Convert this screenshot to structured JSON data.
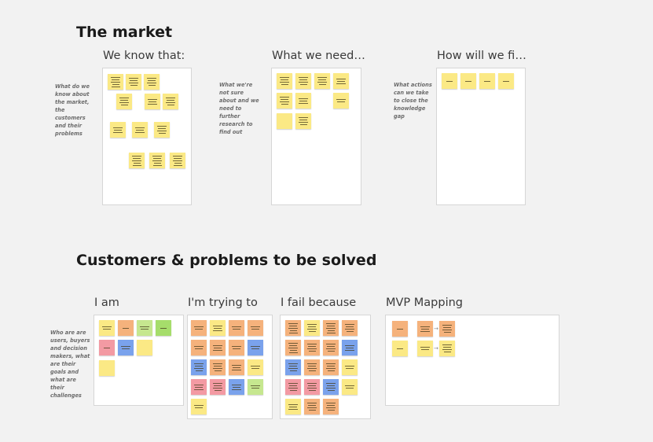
{
  "sections": {
    "market": {
      "title": "The market"
    },
    "customers": {
      "title": "Customers & problems to be solved"
    }
  },
  "frames": {
    "know": {
      "title": "We know that:",
      "note": "What do we know about the market, the customers and their problems"
    },
    "need": {
      "title": "What we need t...",
      "note": "What we're not sure about and we need to further research to find out"
    },
    "find": {
      "title": "How will we fin...",
      "note": "What actions can we take to close the knowledge gap"
    },
    "iam": {
      "title": "I am",
      "note": "Who are are users, buyers and decision makers, what are their goals and what are their challenges"
    },
    "trying": {
      "title": "I'm trying to"
    },
    "fail": {
      "title": "I fail because"
    },
    "mvp": {
      "title": "MVP Mapping"
    }
  },
  "colors": {
    "yellow": "#fbe985",
    "orange": "#f5b27c",
    "blue": "#7aa2ec",
    "pink": "#f39aa3",
    "green": "#c6e78f",
    "bright_green": "#a6dd6b"
  }
}
